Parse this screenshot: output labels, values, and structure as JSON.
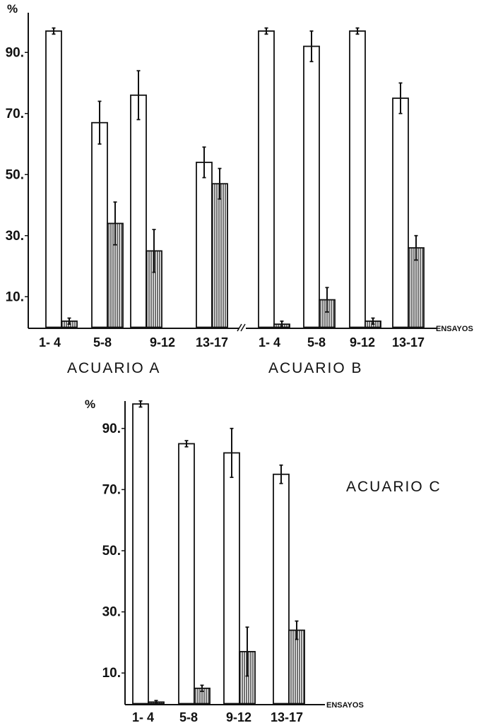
{
  "chart_data": [
    {
      "type": "bar",
      "panels": [
        {
          "label": "ACUARIO  A",
          "categories": [
            "1- 4",
            "5-8",
            "9-12",
            "13-17"
          ],
          "series": [
            {
              "fill": "open",
              "values": [
                97,
                67,
                76,
                54
              ],
              "errors": [
                1,
                7,
                8,
                5
              ]
            },
            {
              "fill": "hatched",
              "values": [
                2,
                34,
                25,
                47
              ],
              "errors": [
                1,
                7,
                7,
                5
              ]
            }
          ]
        },
        {
          "label": "ACUARIO  B",
          "categories": [
            "1- 4",
            "5-8",
            "9-12",
            "13-17"
          ],
          "series": [
            {
              "fill": "open",
              "values": [
                97,
                92,
                97,
                75
              ],
              "errors": [
                1,
                5,
                1,
                5
              ]
            },
            {
              "fill": "hatched",
              "values": [
                1,
                9,
                2,
                26
              ],
              "errors": [
                1,
                4,
                1,
                4
              ]
            }
          ]
        }
      ],
      "y_unit": "%",
      "xlabel": "ENSAYOS",
      "yticks": [
        "10.",
        "30.",
        "50.",
        "70.",
        "90."
      ],
      "ylim": [
        0,
        100
      ]
    },
    {
      "type": "bar",
      "label": "ACUARIO  C",
      "categories": [
        "1- 4",
        "5-8",
        "9-12",
        "13-17"
      ],
      "series": [
        {
          "fill": "open",
          "values": [
            98,
            85,
            82,
            75
          ],
          "errors": [
            1,
            1,
            8,
            3
          ]
        },
        {
          "fill": "hatched",
          "values": [
            0.5,
            5,
            17,
            24
          ],
          "errors": [
            0.5,
            1,
            8,
            3
          ]
        }
      ],
      "y_unit": "%",
      "xlabel": "ENSAYOS",
      "yticks": [
        "10.",
        "30.",
        "50.",
        "70.",
        "90."
      ],
      "ylim": [
        0,
        100
      ]
    }
  ],
  "colors": {
    "ink": "#111111",
    "paper": "#ffffff",
    "hatch": "#222222"
  }
}
